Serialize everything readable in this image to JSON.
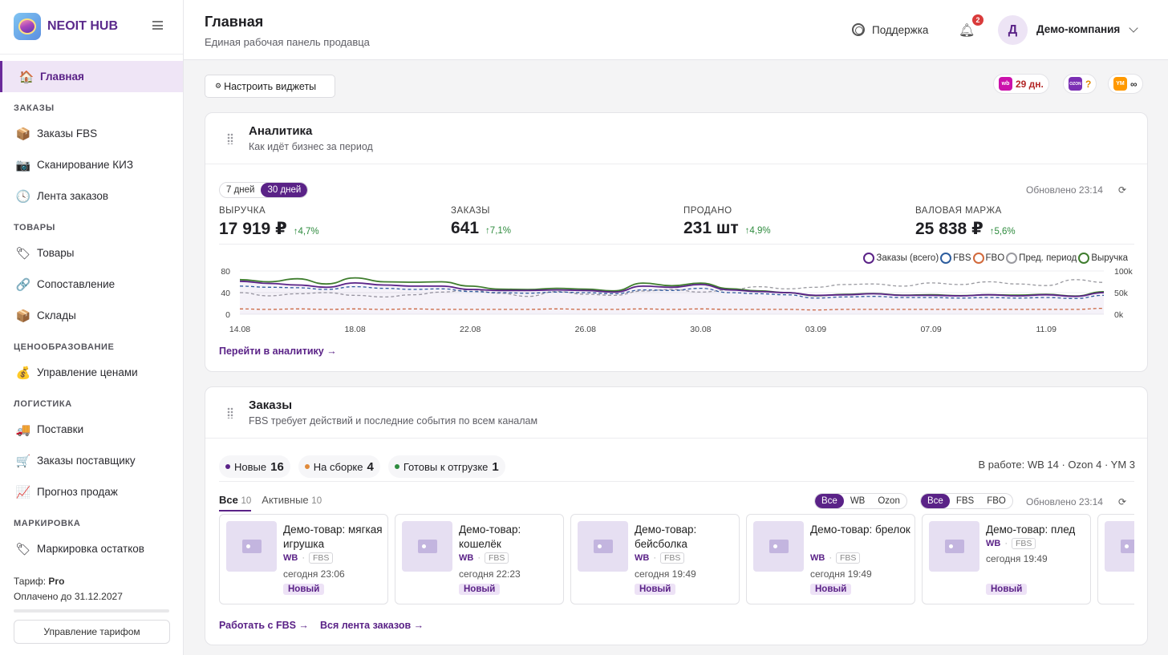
{
  "sidebar": {
    "brand": "NEOIT HUB",
    "home": {
      "label": "Главная",
      "icon": "house-icon"
    },
    "sections": [
      {
        "title": "ЗАКАЗЫ",
        "items": [
          {
            "label": "Заказы FBS",
            "icon": "package-icon"
          },
          {
            "label": "Сканирование КИЗ",
            "icon": "camera-icon"
          },
          {
            "label": "Лента заказов",
            "icon": "clock-icon"
          }
        ]
      },
      {
        "title": "ТОВАРЫ",
        "items": [
          {
            "label": "Товары",
            "icon": "tag-icon"
          },
          {
            "label": "Сопоставление",
            "icon": "link-icon"
          },
          {
            "label": "Склады",
            "icon": "box-icon"
          }
        ]
      },
      {
        "title": "ЦЕНООБРАЗОВАНИЕ",
        "items": [
          {
            "label": "Управление ценами",
            "icon": "money-bag-icon"
          }
        ]
      },
      {
        "title": "ЛОГИСТИКА",
        "items": [
          {
            "label": "Поставки",
            "icon": "truck-icon"
          },
          {
            "label": "Заказы поставщику",
            "icon": "cart-icon"
          },
          {
            "label": "Прогноз продаж",
            "icon": "chart-up-icon"
          }
        ]
      },
      {
        "title": "МАРКИРОВКА",
        "items": [
          {
            "label": "Маркировка остатков",
            "icon": "tag-icon"
          }
        ]
      }
    ],
    "tariff_label": "Тариф:",
    "tariff_name": "Pro",
    "paid_until": "Оплачено до 31.12.2027",
    "tariff_button": "Управление тарифом"
  },
  "header": {
    "title": "Главная",
    "subtitle": "Единая рабочая панель продавца",
    "support": "Поддержка",
    "notifications": "2",
    "avatar_letter": "Д",
    "company": "Демо-компания"
  },
  "toolbar": {
    "configure_widgets": "Настроить виджеты",
    "marketplaces": [
      {
        "icon_text": "wb",
        "color": "#cb11ab",
        "value": "29 дн.",
        "value_color": "#b32626"
      },
      {
        "icon_text": "OZON",
        "color": "#7b2fb4",
        "value": "?",
        "value_color": "#e08a00"
      },
      {
        "icon_text": "YM",
        "color": "#ff9900",
        "value": "∞",
        "value_color": "#333"
      }
    ]
  },
  "analytics": {
    "title": "Аналитика",
    "subtitle": "Как идёт бизнес за период",
    "periods": [
      "7 дней",
      "30 дней"
    ],
    "active_period": "30 дней",
    "updated": "Обновлено 23:14",
    "kpis": [
      {
        "label": "ВЫРУЧКА",
        "value": "17 919 ₽",
        "delta": "↑4,7%"
      },
      {
        "label": "ЗАКАЗЫ",
        "value": "641",
        "delta": "↑7,1%"
      },
      {
        "label": "ПРОДАНО",
        "value": "231 шт",
        "delta": "↑4,9%"
      },
      {
        "label": "ВАЛОВАЯ МАРЖА",
        "value": "25 838 ₽",
        "delta": "↑5,6%"
      }
    ],
    "link": "Перейти в аналитику →"
  },
  "chart_data": {
    "type": "line",
    "x": [
      "14.08",
      "15.08",
      "16.08",
      "17.08",
      "18.08",
      "19.08",
      "20.08",
      "21.08",
      "22.08",
      "23.08",
      "24.08",
      "25.08",
      "26.08",
      "27.08",
      "28.08",
      "29.08",
      "30.08",
      "31.08",
      "01.09",
      "02.09",
      "03.09",
      "04.09",
      "05.09",
      "06.09",
      "07.09",
      "08.09",
      "09.09",
      "10.09",
      "11.09",
      "12.09",
      "13.09"
    ],
    "xticks": [
      "14.08",
      "18.08",
      "22.08",
      "26.08",
      "30.08",
      "03.09",
      "07.09",
      "11.09"
    ],
    "yticks_left": [
      "0",
      "40",
      "80"
    ],
    "yticks_right": [
      "0k",
      "50k",
      "100k"
    ],
    "ylim": [
      0,
      80
    ],
    "y2lim": [
      0,
      100000
    ],
    "legend_position": "top-right",
    "series": [
      {
        "name": "Заказы (всего)",
        "color": "#5a2287",
        "style": "solid",
        "axis": "left",
        "values": [
          61,
          57,
          54,
          50,
          58,
          54,
          52,
          52,
          46,
          44,
          44,
          45,
          44,
          41,
          52,
          50,
          55,
          45,
          42,
          40,
          35,
          36,
          38,
          35,
          35,
          34,
          36,
          34,
          36,
          33,
          40
        ]
      },
      {
        "name": "FBS",
        "color": "#2d5d9e",
        "style": "dashed",
        "axis": "left",
        "values": [
          52,
          50,
          49,
          46,
          51,
          48,
          46,
          47,
          42,
          40,
          39,
          41,
          40,
          38,
          45,
          44,
          48,
          40,
          38,
          36,
          30,
          32,
          33,
          31,
          31,
          30,
          31,
          30,
          31,
          29,
          35
        ]
      },
      {
        "name": "FBO",
        "color": "#d2693b",
        "style": "dashed",
        "axis": "left",
        "values": [
          10,
          9,
          10,
          9,
          10,
          9,
          10,
          9,
          9,
          9,
          9,
          10,
          9,
          9,
          10,
          9,
          10,
          9,
          9,
          9,
          8,
          9,
          9,
          9,
          9,
          9,
          9,
          9,
          9,
          9,
          11
        ]
      },
      {
        "name": "Пред. период",
        "color": "#9a9aa0",
        "style": "dashed",
        "axis": "left",
        "values": [
          40,
          34,
          38,
          40,
          35,
          32,
          36,
          41,
          45,
          39,
          33,
          42,
          37,
          35,
          43,
          46,
          41,
          45,
          51,
          47,
          50,
          55,
          56,
          52,
          58,
          55,
          60,
          56,
          53,
          64,
          59
        ]
      },
      {
        "name": "Выручка",
        "color": "#3f7d2e",
        "style": "solid",
        "axis": "right",
        "values": [
          80000,
          75000,
          82000,
          70000,
          84000,
          75000,
          74000,
          75000,
          65000,
          58000,
          57000,
          60000,
          58000,
          54000,
          72000,
          66000,
          72000,
          59000,
          54000,
          50000,
          43000,
          46000,
          48000,
          44000,
          45000,
          43000,
          45000,
          44000,
          46000,
          42000,
          52000
        ]
      }
    ]
  },
  "orders": {
    "title": "Заказы",
    "subtitle": "FBS требует действий и последние события по всем каналам",
    "counts": [
      {
        "label": "Новые",
        "value": "16",
        "color": "#5a2287"
      },
      {
        "label": "На сборке",
        "value": "4",
        "color": "#e08a3a"
      },
      {
        "label": "Готовы к отгрузке",
        "value": "1",
        "color": "#2e8b3e"
      }
    ],
    "in_work": "В работе: WB 14 · Ozon 4 · YM 3",
    "tabs": [
      {
        "label": "Все",
        "count": "10"
      },
      {
        "label": "Активные",
        "count": "10"
      }
    ],
    "filter_mp": [
      "Все",
      "WB",
      "Ozon"
    ],
    "filter_type": [
      "Все",
      "FBS",
      "FBO"
    ],
    "updated": "Обновлено 23:14",
    "items": [
      {
        "name": "Демо-товар: мягкая игрушка",
        "mp": "WB",
        "type": "FBS",
        "time": "сегодня 23:06",
        "status": "Новый"
      },
      {
        "name": "Демо-товар: кошелёк",
        "mp": "WB",
        "type": "FBS",
        "time": "сегодня 22:23",
        "status": "Новый"
      },
      {
        "name": "Демо-товар: бейсболка",
        "mp": "WB",
        "type": "FBS",
        "time": "сегодня 19:49",
        "status": "Новый"
      },
      {
        "name": "Демо-товар: брелок",
        "mp": "WB",
        "type": "FBS",
        "time": "сегодня 19:49",
        "status": "Новый"
      },
      {
        "name": "Демо-товар: плед",
        "mp": "WB",
        "type": "FBS",
        "time": "сегодня 19:49",
        "status": "Новый"
      }
    ],
    "link_fbs": "Работать с FBS →",
    "link_feed": "Вся лента заказов →"
  }
}
